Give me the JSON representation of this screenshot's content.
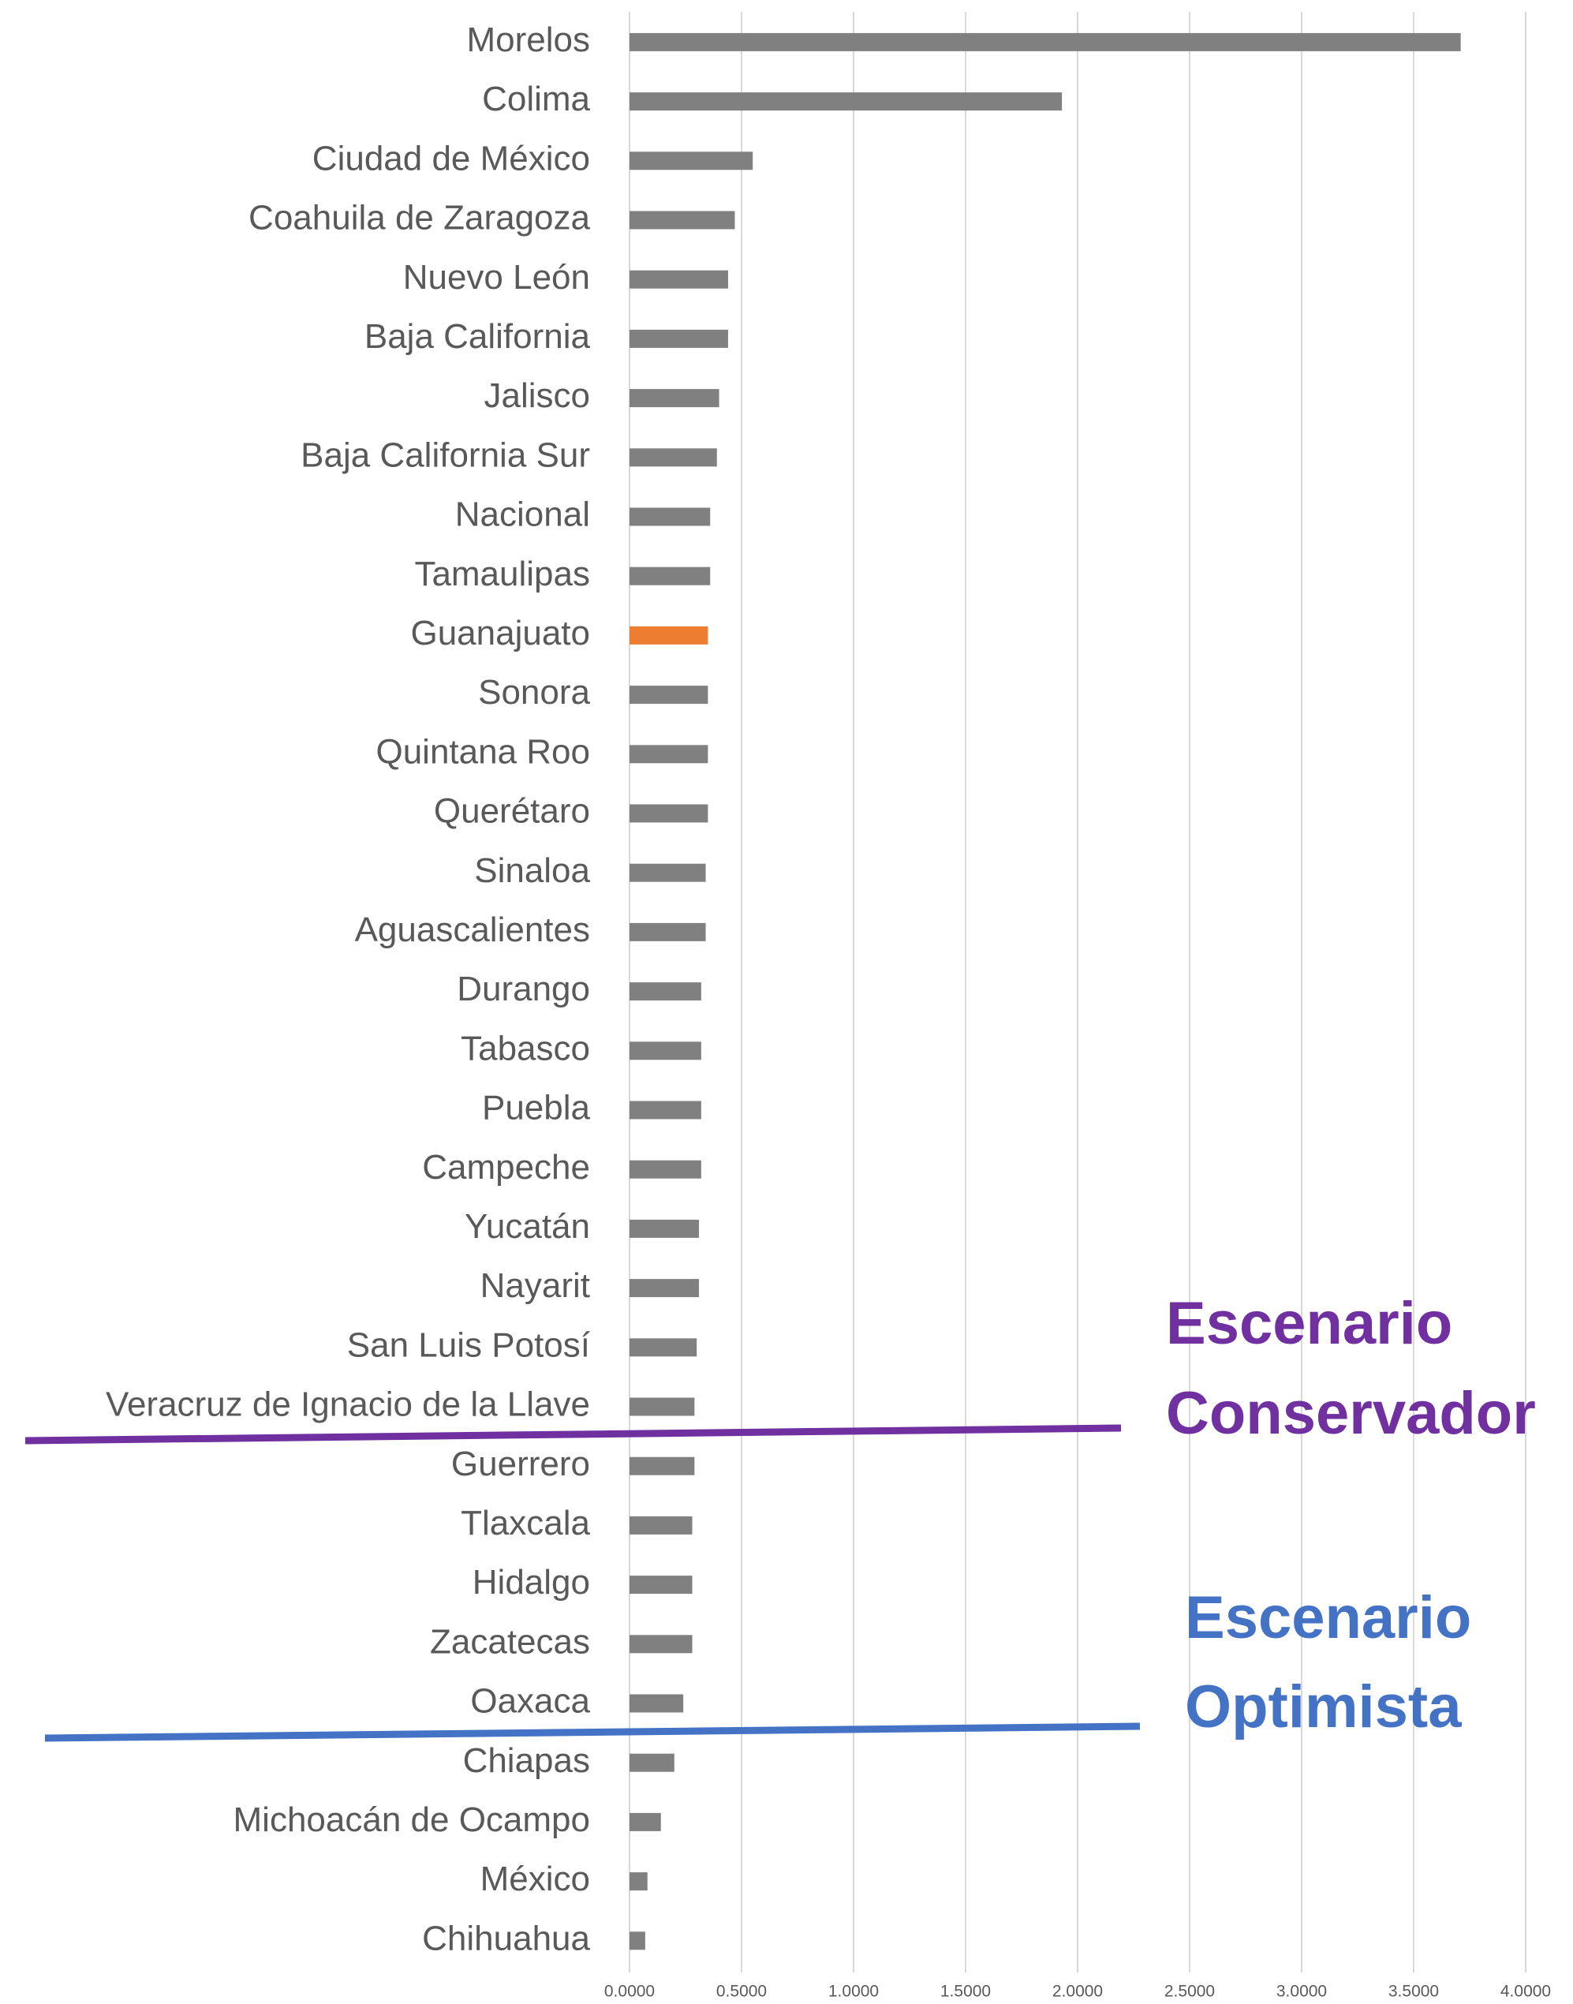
{
  "chart_data": {
    "type": "barh",
    "categories": [
      "Morelos",
      "Colima",
      "Ciudad de México",
      "Coahuila de Zaragoza",
      "Nuevo León",
      "Baja California",
      "Jalisco",
      "Baja California Sur",
      "Nacional",
      "Tamaulipas",
      "Guanajuato",
      "Sonora",
      "Quintana Roo",
      "Querétaro",
      "Sinaloa",
      "Aguascalientes",
      "Durango",
      "Tabasco",
      "Puebla",
      "Campeche",
      "Yucatán",
      "Nayarit",
      "San Luis Potosí",
      "Veracruz de Ignacio de la Llave",
      "Guerrero",
      "Tlaxcala",
      "Hidalgo",
      "Zacatecas",
      "Oaxaca",
      "Chiapas",
      "Michoacán de Ocampo",
      "México",
      "Chihuahua"
    ],
    "values": [
      3.71,
      1.93,
      0.55,
      0.47,
      0.44,
      0.44,
      0.4,
      0.39,
      0.36,
      0.36,
      0.35,
      0.35,
      0.35,
      0.35,
      0.34,
      0.34,
      0.32,
      0.32,
      0.32,
      0.32,
      0.31,
      0.31,
      0.3,
      0.29,
      0.29,
      0.28,
      0.28,
      0.28,
      0.24,
      0.2,
      0.14,
      0.08,
      0.07
    ],
    "colors": [
      "#808080",
      "#808080",
      "#808080",
      "#808080",
      "#808080",
      "#808080",
      "#808080",
      "#808080",
      "#808080",
      "#808080",
      "#ed7d31",
      "#808080",
      "#808080",
      "#808080",
      "#808080",
      "#808080",
      "#808080",
      "#808080",
      "#808080",
      "#808080",
      "#808080",
      "#808080",
      "#808080",
      "#808080",
      "#808080",
      "#808080",
      "#808080",
      "#808080",
      "#808080",
      "#808080",
      "#808080",
      "#808080",
      "#808080"
    ],
    "xlim": [
      0,
      4
    ],
    "xticks": [
      {
        "value": 0,
        "label": "0.0000"
      },
      {
        "value": 0.5,
        "label": "0.5000"
      },
      {
        "value": 1,
        "label": "1.0000"
      },
      {
        "value": 1.5,
        "label": "1.5000"
      },
      {
        "value": 2,
        "label": "2.0000"
      },
      {
        "value": 2.5,
        "label": "2.5000"
      },
      {
        "value": 3,
        "label": "3.0000"
      },
      {
        "value": 3.5,
        "label": "3.5000"
      },
      {
        "value": 4,
        "label": "4.0000"
      }
    ],
    "grid": true,
    "annotations": [
      {
        "lines": [
          "Escenario",
          "Conservador"
        ],
        "color": "#7030a0"
      },
      {
        "lines": [
          "Escenario",
          "Optimista"
        ],
        "color": "#4472c4"
      }
    ]
  }
}
